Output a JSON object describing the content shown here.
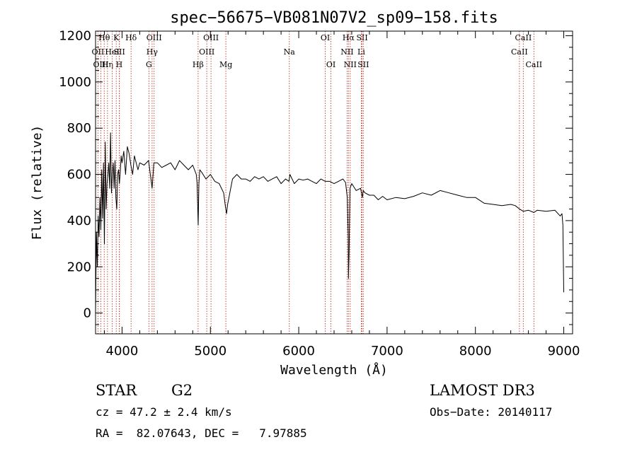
{
  "chart_data": {
    "type": "line",
    "title": "spec−56675−VB081N07V2_sp09−158.fits",
    "xlabel": "Wavelength (Å)",
    "ylabel": "Flux (relative)",
    "xlim": [
      3700,
      9100
    ],
    "ylim": [
      -90,
      1220
    ],
    "xticks": [
      4000,
      5000,
      6000,
      7000,
      8000,
      9000
    ],
    "yticks": [
      0,
      200,
      400,
      600,
      800,
      1000,
      1200
    ],
    "grid": false,
    "series": [
      {
        "name": "spectrum",
        "x": [
          3700,
          3710,
          3720,
          3730,
          3740,
          3750,
          3760,
          3770,
          3780,
          3790,
          3800,
          3810,
          3820,
          3830,
          3840,
          3850,
          3860,
          3870,
          3880,
          3890,
          3900,
          3910,
          3920,
          3930,
          3940,
          3950,
          3960,
          3970,
          3980,
          3990,
          4000,
          4020,
          4040,
          4060,
          4080,
          4100,
          4120,
          4140,
          4160,
          4180,
          4200,
          4250,
          4300,
          4340,
          4360,
          4400,
          4450,
          4500,
          4550,
          4600,
          4650,
          4700,
          4750,
          4800,
          4840,
          4850,
          4862,
          4870,
          4880,
          4900,
          4950,
          5000,
          5050,
          5100,
          5150,
          5170,
          5183,
          5195,
          5250,
          5300,
          5350,
          5400,
          5450,
          5500,
          5550,
          5600,
          5650,
          5700,
          5750,
          5800,
          5850,
          5890,
          5900,
          5950,
          6000,
          6050,
          6100,
          6150,
          6200,
          6250,
          6300,
          6350,
          6400,
          6450,
          6500,
          6530,
          6550,
          6560,
          6563,
          6570,
          6580,
          6600,
          6650,
          6700,
          6720,
          6730,
          6750,
          6800,
          6850,
          6900,
          6950,
          7000,
          7100,
          7200,
          7300,
          7400,
          7500,
          7600,
          7700,
          7800,
          7900,
          8000,
          8100,
          8200,
          8300,
          8400,
          8450,
          8500,
          8542,
          8600,
          8662,
          8700,
          8800,
          8900,
          8960,
          8980,
          8990,
          9000
        ],
        "values": [
          0,
          350,
          200,
          420,
          330,
          500,
          360,
          620,
          410,
          650,
          300,
          740,
          450,
          560,
          600,
          650,
          540,
          780,
          520,
          600,
          650,
          540,
          660,
          500,
          450,
          600,
          620,
          560,
          610,
          680,
          650,
          700,
          600,
          720,
          690,
          640,
          600,
          680,
          650,
          620,
          650,
          640,
          660,
          540,
          650,
          650,
          630,
          640,
          650,
          620,
          660,
          640,
          620,
          640,
          600,
          560,
          380,
          560,
          620,
          610,
          580,
          600,
          570,
          560,
          520,
          460,
          430,
          470,
          580,
          600,
          580,
          580,
          570,
          590,
          580,
          590,
          570,
          580,
          590,
          560,
          580,
          570,
          600,
          560,
          580,
          575,
          580,
          570,
          560,
          580,
          570,
          570,
          560,
          570,
          580,
          565,
          500,
          330,
          150,
          260,
          540,
          560,
          530,
          540,
          500,
          530,
          520,
          510,
          510,
          490,
          505,
          490,
          500,
          495,
          505,
          520,
          510,
          530,
          520,
          510,
          500,
          500,
          475,
          470,
          465,
          470,
          465,
          450,
          440,
          445,
          435,
          445,
          440,
          445,
          420,
          430,
          380,
          90
        ]
      }
    ],
    "lines": [
      {
        "label": "Hθ",
        "x": 3798,
        "row": 1
      },
      {
        "label": "OII",
        "x": 3727,
        "row": 2
      },
      {
        "label": "OIII",
        "x": 3760,
        "row": 3
      },
      {
        "label": "Hη",
        "x": 3835,
        "row": 3
      },
      {
        "label": "K",
        "x": 3934,
        "row": 1
      },
      {
        "label": "HeI",
        "x": 3889,
        "row": 2
      },
      {
        "label": "SII",
        "x": 3970,
        "row": 2
      },
      {
        "label": "H",
        "x": 3968,
        "row": 3
      },
      {
        "label": "Hδ",
        "x": 4102,
        "row": 1
      },
      {
        "label": "OIII",
        "x": 4363,
        "row": 1
      },
      {
        "label": "Hγ",
        "x": 4340,
        "row": 2
      },
      {
        "label": "G",
        "x": 4304,
        "row": 3
      },
      {
        "label": "Hβ",
        "x": 4861,
        "row": 3
      },
      {
        "label": "OIII",
        "x": 5007,
        "row": 1
      },
      {
        "label": "OIII",
        "x": 4959,
        "row": 2
      },
      {
        "label": "Mg",
        "x": 5175,
        "row": 3
      },
      {
        "label": "Na",
        "x": 5893,
        "row": 2
      },
      {
        "label": "OI",
        "x": 6300,
        "row": 1
      },
      {
        "label": "OI",
        "x": 6364,
        "row": 3
      },
      {
        "label": "Hα",
        "x": 6563,
        "row": 1
      },
      {
        "label": "SII",
        "x": 6717,
        "row": 1
      },
      {
        "label": "NII",
        "x": 6548,
        "row": 2
      },
      {
        "label": "Li",
        "x": 6708,
        "row": 2
      },
      {
        "label": "NII",
        "x": 6583,
        "row": 3
      },
      {
        "label": "SII",
        "x": 6731,
        "row": 3
      },
      {
        "label": "CaII",
        "x": 8542,
        "row": 1
      },
      {
        "label": "CaII",
        "x": 8498,
        "row": 2
      },
      {
        "label": "CaII",
        "x": 8662,
        "row": 3
      }
    ]
  },
  "info": {
    "object_type": "STAR",
    "subclass": "G2",
    "survey": "LAMOST DR3",
    "redshift": "cz = 47.2 ± 2.4 km/s",
    "obs_date": "Obs−Date: 20140117",
    "coords": "RA =  82.07643, DEC =   7.97885"
  }
}
